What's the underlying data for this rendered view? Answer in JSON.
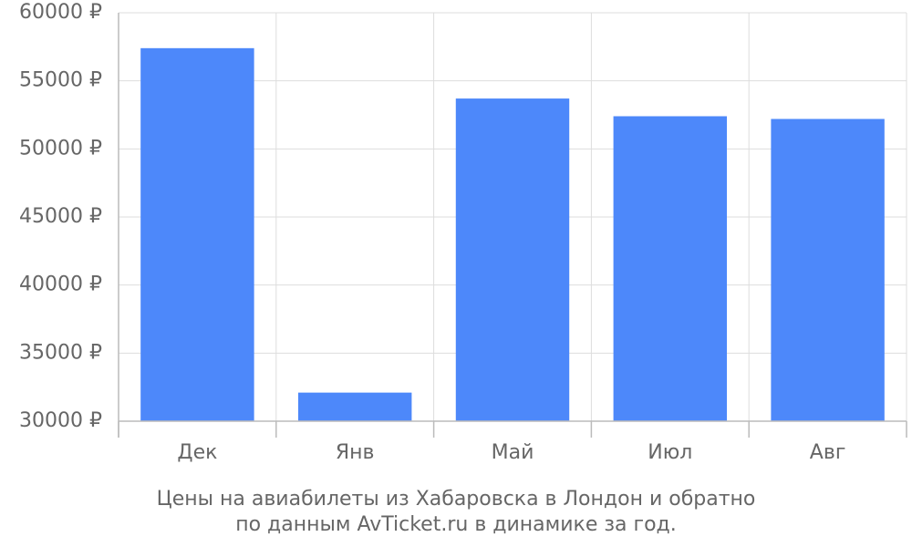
{
  "chart_data": {
    "type": "bar",
    "caption": [
      "Цены на авиабилеты из Хабаровска в Лондон и обратно",
      "по данным AvTicket.ru в динамике за год."
    ],
    "categories": [
      "Дек",
      "Янв",
      "Май",
      "Июл",
      "Авг"
    ],
    "values": [
      57400,
      32100,
      53700,
      52400,
      52200
    ],
    "color": "#4d88fa",
    "ylim": [
      30000,
      60000
    ],
    "yticks": [
      {
        "value": 30000,
        "label": "30000 ₽"
      },
      {
        "value": 35000,
        "label": "35000 ₽"
      },
      {
        "value": 40000,
        "label": "40000 ₽"
      },
      {
        "value": 45000,
        "label": "45000 ₽"
      },
      {
        "value": 50000,
        "label": "50000 ₽"
      },
      {
        "value": 55000,
        "label": "55000 ₽"
      },
      {
        "value": 60000,
        "label": "60000 ₽"
      }
    ],
    "grid": true
  }
}
